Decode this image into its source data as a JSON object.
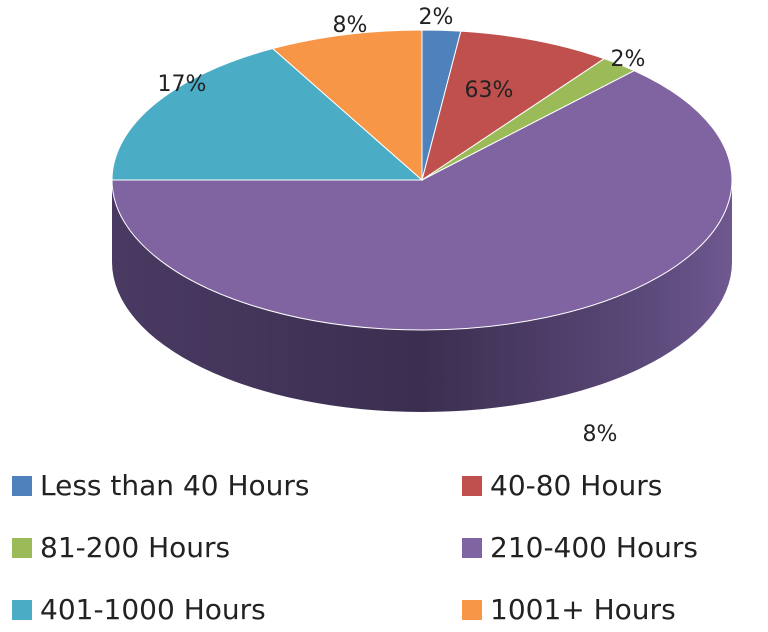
{
  "chart_data": {
    "type": "pie",
    "categories": [
      "Less than 40 Hours",
      "40-80 Hours",
      "81-200 Hours",
      "210-400 Hours",
      "401-1000 Hours",
      "1001+ Hours"
    ],
    "values": [
      2,
      8,
      2,
      63,
      17,
      8
    ],
    "value_labels": [
      "2%",
      "8%",
      "2%",
      "63%",
      "17%",
      "8%"
    ],
    "colors": [
      "#4f81bd",
      "#c0504d",
      "#9bbb59",
      "#8064a2",
      "#4bacc6",
      "#f79646"
    ],
    "legend": "bottom"
  }
}
